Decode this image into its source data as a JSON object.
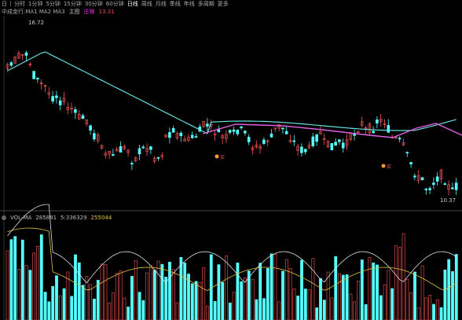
{
  "toolbar": {
    "items": [
      "日",
      "分时",
      "1分钟",
      "5分钟",
      "15分钟",
      "30分钟",
      "60分钟",
      "日线",
      "周线",
      "月线",
      "季线",
      "年线",
      "多周期",
      "更多"
    ],
    "active_index": 7
  },
  "chart_header": {
    "title": "中成金行:MA1 MA2 MA3",
    "indicator_b": "主图",
    "indicator_m": "庄稼",
    "value": "13.31"
  },
  "price": {
    "high_label": "16.72",
    "low_label": "10.37",
    "markers": [
      "买",
      "买"
    ]
  },
  "volume_header": {
    "label": "VOL-MA",
    "vol": "285881",
    "ma5": "5:336329",
    "ma10": "255044"
  },
  "colors": {
    "up": "#ff5555",
    "down": "#55ffff",
    "ma1": "#66e0e0",
    "ma2": "#e060e0"
  }
}
